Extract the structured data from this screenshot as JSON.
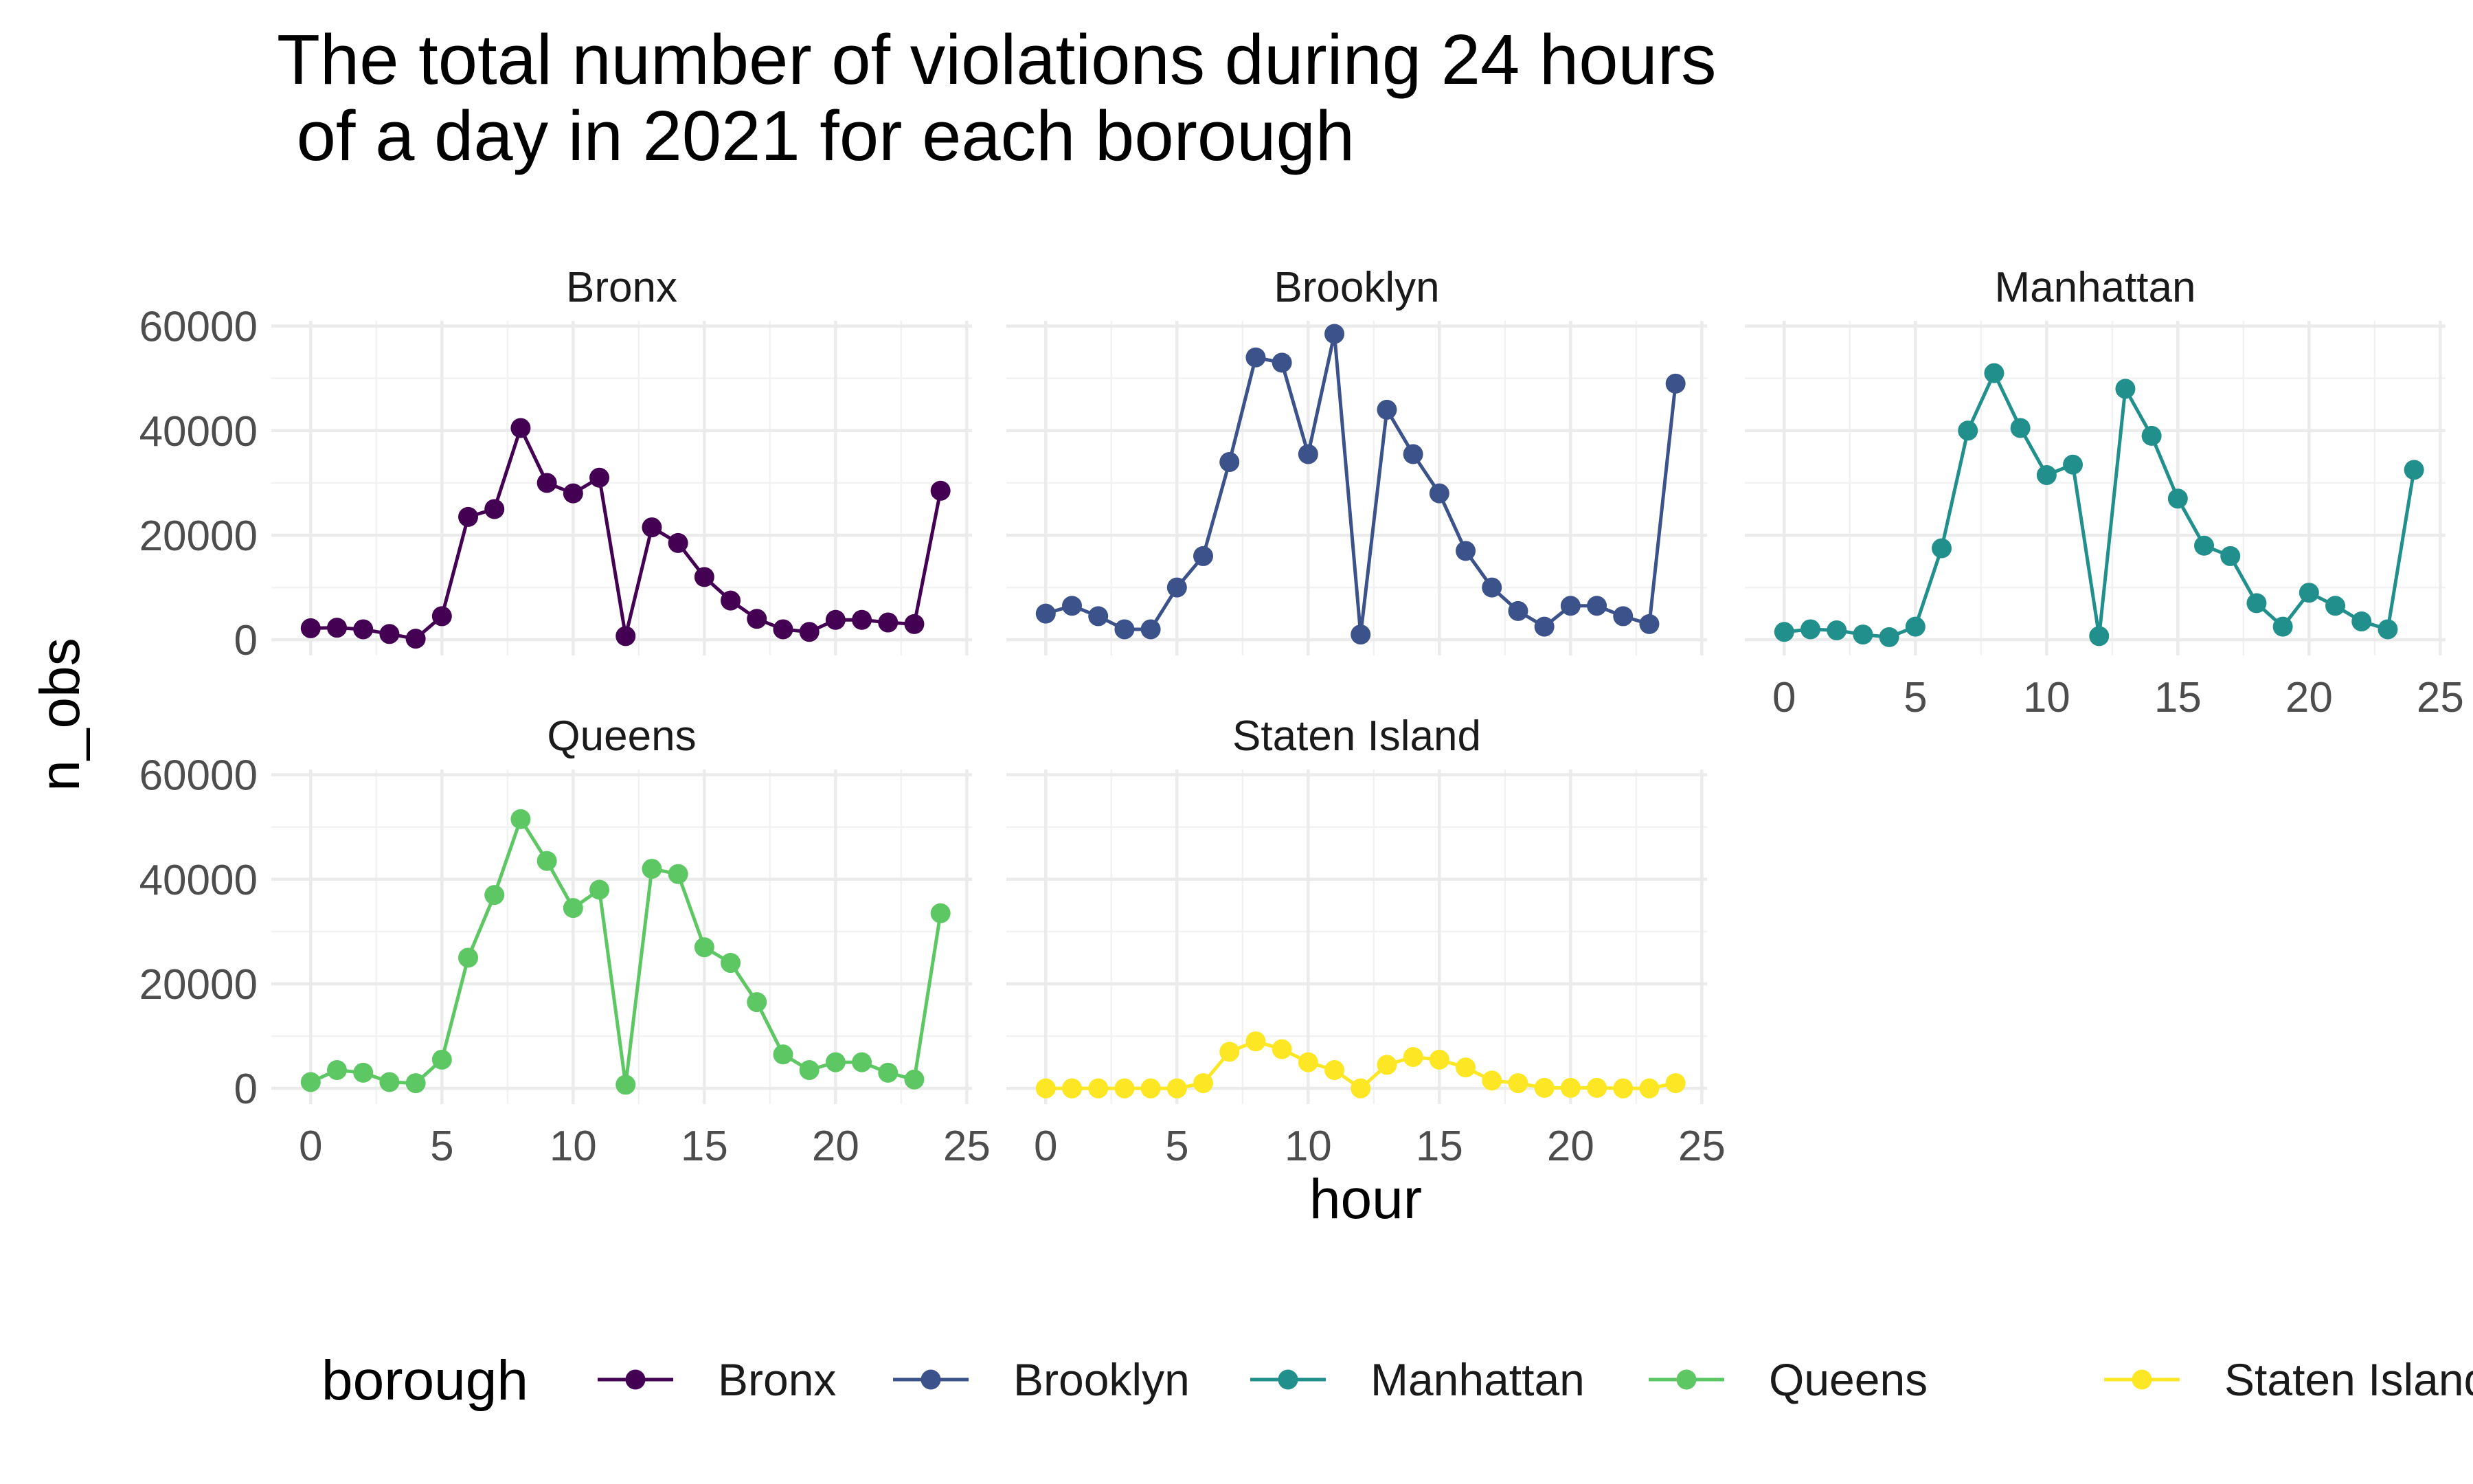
{
  "chart_data": {
    "type": "line",
    "title_lines": [
      "The total number of violations during 24 hours",
      " of a day in 2021 for each borough"
    ],
    "xlabel": "hour",
    "ylabel": "n_obs",
    "xlim": [
      -1.5,
      25.2
    ],
    "ylim": [
      -3000,
      61000
    ],
    "x_ticks": [
      0,
      5,
      10,
      15,
      20,
      25
    ],
    "y_ticks": [
      0,
      20000,
      40000,
      60000
    ],
    "y_tick_labels": [
      "0",
      "20000",
      "40000",
      "60000"
    ],
    "grid": true,
    "legend": {
      "title": "borough",
      "position": "bottom"
    },
    "facet_layout": "3 columns, 2 rows",
    "x": [
      0,
      1,
      2,
      3,
      4,
      5,
      6,
      7,
      8,
      9,
      10,
      11,
      12,
      13,
      14,
      15,
      16,
      17,
      18,
      19,
      20,
      21,
      22,
      23,
      24
    ],
    "series": [
      {
        "name": "Bronx",
        "color": "#440154",
        "values": [
          2200,
          2300,
          2000,
          1100,
          200,
          4500,
          23500,
          25000,
          40500,
          30000,
          28000,
          31000,
          700,
          21500,
          18500,
          12000,
          7500,
          4000,
          2000,
          1500,
          3800,
          3800,
          3300,
          3000,
          28500
        ]
      },
      {
        "name": "Brooklyn",
        "color": "#3B528B",
        "values": [
          5000,
          6500,
          4500,
          2000,
          2000,
          10000,
          16000,
          34000,
          54000,
          53000,
          35500,
          58500,
          1000,
          44000,
          35500,
          28000,
          17000,
          10000,
          5500,
          2500,
          6500,
          6500,
          4500,
          3000,
          49000
        ]
      },
      {
        "name": "Manhattan",
        "color": "#21908C",
        "values": [
          1500,
          2000,
          1800,
          1000,
          500,
          2500,
          17500,
          40000,
          51000,
          40500,
          31500,
          33500,
          700,
          48000,
          39000,
          27000,
          18000,
          16000,
          7000,
          2500,
          9000,
          6500,
          3500,
          2000,
          32500
        ]
      },
      {
        "name": "Queens",
        "color": "#5DC863",
        "values": [
          1200,
          3500,
          3000,
          1200,
          1000,
          5500,
          25000,
          37000,
          51500,
          43500,
          34500,
          38000,
          700,
          42000,
          41000,
          27000,
          24000,
          16500,
          6500,
          3500,
          5000,
          5000,
          3000,
          1700,
          33500
        ]
      },
      {
        "name": "Staten Island",
        "color": "#FDE725",
        "values": [
          0,
          0,
          0,
          0,
          0,
          0,
          1000,
          7000,
          9000,
          7500,
          5000,
          3500,
          0,
          4500,
          6000,
          5500,
          4000,
          1500,
          1000,
          100,
          100,
          100,
          0,
          0,
          1000
        ]
      }
    ]
  }
}
